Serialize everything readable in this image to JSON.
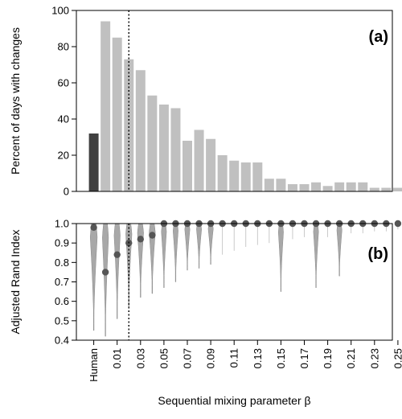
{
  "colors": {
    "human_bar": "#404040",
    "model_bar": "#c0c0c0",
    "violin_fill": "#a8a8a8",
    "violin_edge": "#8a8a8a",
    "point": "#555555",
    "outlier": "#bdbdbd",
    "axis": "#000000"
  },
  "x_axis": {
    "title": "Sequential mixing parameter β",
    "tick_labels": [
      "Human",
      "0.01",
      "0.03",
      "0.05",
      "0.07",
      "0.09",
      "0.11",
      "0.13",
      "0.15",
      "0.17",
      "0.19",
      "0.21",
      "0.23",
      "0.25"
    ],
    "reference_line_beta": 0.02,
    "reference_line_style": "dotted"
  },
  "chart_data": [
    {
      "type": "bar",
      "panel_label": "(a)",
      "ylabel": "Percent of days with changes",
      "ylim": [
        0,
        100
      ],
      "yticks": [
        0,
        20,
        40,
        60,
        80,
        100
      ],
      "grid": false,
      "categories": [
        "Human",
        "0",
        "0.01",
        "0.02",
        "0.03",
        "0.04",
        "0.05",
        "0.06",
        "0.07",
        "0.08",
        "0.09",
        "0.1",
        "0.11",
        "0.12",
        "0.13",
        "0.14",
        "0.15",
        "0.16",
        "0.17",
        "0.18",
        "0.19",
        "0.2",
        "0.21",
        "0.22",
        "0.23",
        "0.24",
        "0.25"
      ],
      "values": [
        32,
        94,
        85,
        73,
        67,
        53,
        48,
        46,
        28,
        34,
        29,
        20,
        17,
        16,
        16,
        7,
        7,
        4,
        4,
        5,
        3,
        5,
        5,
        5,
        2,
        2,
        2
      ]
    },
    {
      "type": "violin",
      "panel_label": "(b)",
      "ylabel": "Adjusted Rand Index",
      "ylim": [
        0.4,
        1.0
      ],
      "yticks": [
        0.4,
        0.5,
        0.6,
        0.7,
        0.8,
        0.9,
        1.0
      ],
      "grid": false,
      "categories": [
        "Human",
        "0",
        "0.01",
        "0.02",
        "0.03",
        "0.04",
        "0.05",
        "0.06",
        "0.07",
        "0.08",
        "0.09",
        "0.1",
        "0.11",
        "0.12",
        "0.13",
        "0.14",
        "0.15",
        "0.16",
        "0.17",
        "0.18",
        "0.19",
        "0.2",
        "0.21",
        "0.22",
        "0.23",
        "0.24",
        "0.25"
      ],
      "medians": [
        0.98,
        0.75,
        0.84,
        0.9,
        0.92,
        0.94,
        1.0,
        1.0,
        1.0,
        1.0,
        1.0,
        1.0,
        1.0,
        1.0,
        1.0,
        1.0,
        1.0,
        1.0,
        1.0,
        1.0,
        1.0,
        1.0,
        1.0,
        1.0,
        1.0,
        1.0,
        1.0
      ],
      "minimums": [
        0.45,
        0.42,
        0.51,
        0.57,
        0.62,
        0.64,
        0.67,
        0.7,
        0.76,
        0.77,
        0.79,
        0.84,
        0.86,
        0.88,
        0.89,
        0.9,
        0.65,
        0.92,
        0.93,
        0.67,
        0.93,
        0.73,
        0.95,
        0.95,
        0.96,
        0.96,
        0.97
      ]
    }
  ]
}
